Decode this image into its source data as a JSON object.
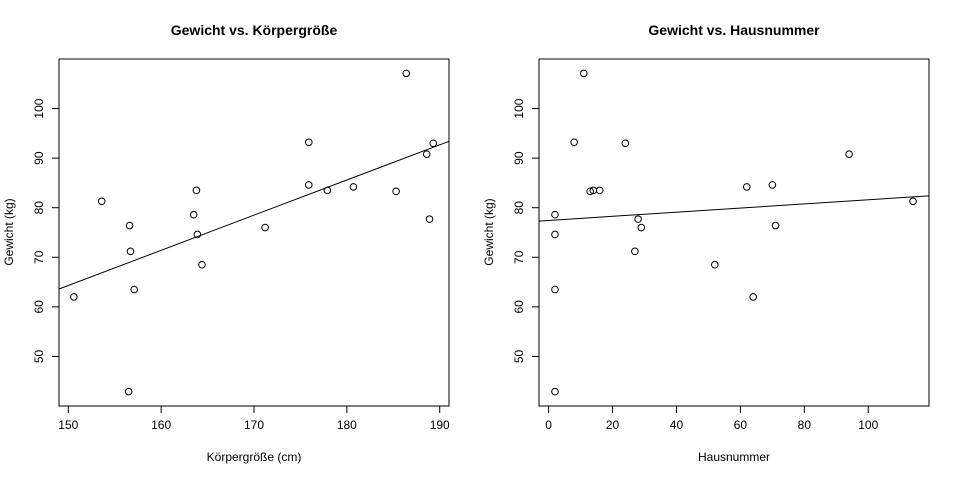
{
  "chart_data": [
    {
      "type": "scatter",
      "title": "Gewicht vs. Körpergröße",
      "xlabel": "Körpergröße (cm)",
      "ylabel": "Gewicht (kg)",
      "xlim": [
        149,
        191
      ],
      "ylim": [
        40,
        110
      ],
      "xticks": [
        150,
        160,
        170,
        180,
        190
      ],
      "yticks": [
        50,
        60,
        70,
        80,
        90,
        100
      ],
      "x": [
        150.6,
        153.6,
        156.5,
        156.6,
        156.7,
        157.1,
        163.5,
        163.8,
        163.9,
        164.4,
        171.2,
        175.9,
        175.9,
        177.9,
        180.7,
        185.3,
        186.4,
        188.6,
        188.9,
        189.3
      ],
      "y": [
        62.0,
        81.3,
        42.9,
        76.4,
        71.2,
        63.5,
        78.6,
        83.5,
        74.6,
        68.5,
        76.0,
        84.6,
        93.2,
        83.5,
        84.2,
        83.3,
        107.1,
        90.8,
        77.7,
        93.0
      ],
      "regression_line": {
        "x": [
          149,
          191
        ],
        "y": [
          63.6,
          93.4
        ]
      }
    },
    {
      "type": "scatter",
      "title": "Gewicht vs. Hausnummer",
      "xlabel": "Hausnummer",
      "ylabel": "Gewicht (kg)",
      "xlim": [
        -3,
        119
      ],
      "ylim": [
        40,
        110
      ],
      "xticks": [
        0,
        20,
        40,
        60,
        80,
        100
      ],
      "yticks": [
        50,
        60,
        70,
        80,
        90,
        100
      ],
      "x": [
        2,
        2,
        2,
        2,
        8,
        11,
        13,
        14,
        16,
        24,
        27,
        28,
        29,
        52,
        62,
        64,
        70,
        71,
        94,
        114
      ],
      "y": [
        78.6,
        74.6,
        63.5,
        42.9,
        93.2,
        107.1,
        83.3,
        83.5,
        83.5,
        93.0,
        71.2,
        77.7,
        76.0,
        68.5,
        84.2,
        62.0,
        84.6,
        76.4,
        90.8,
        81.3
      ],
      "regression_line": {
        "x": [
          -3,
          119
        ],
        "y": [
          77.3,
          82.4
        ]
      }
    }
  ]
}
